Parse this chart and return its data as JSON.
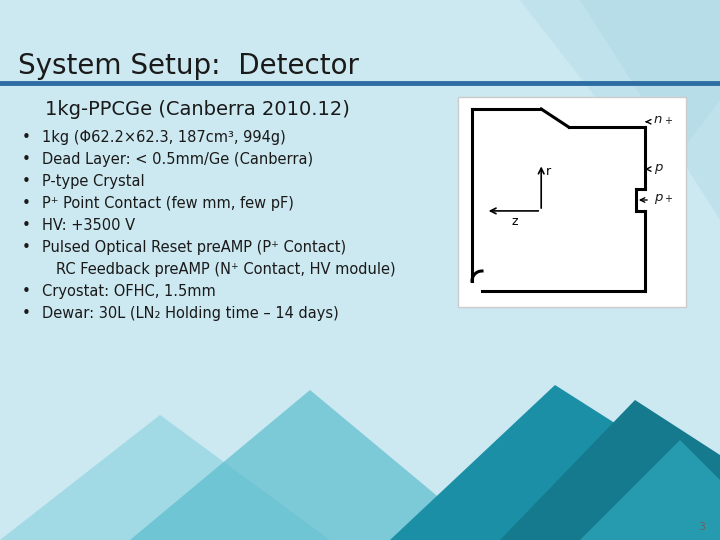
{
  "title": "System Setup:  Detector",
  "subtitle": "1kg-PPCGe (Canberra 2010.12)",
  "bg_color": "#cce8f0",
  "title_color": "#1a1a1a",
  "title_line_color": "#2e6da4",
  "bullet_items": [
    "1kg (Φ62.2×62.3, 187cm³, 994g)",
    "Dead Layer: < 0.5mm/Ge (Canberra)",
    "P-type Crystal",
    "P⁺ Point Contact (few mm, few pF)",
    "HV: +3500 V",
    "Pulsed Optical Reset preAMP (P⁺ Contact)",
    "RC Feedback preAMP (N⁺ Contact, HV module)",
    "Cryostat: OFHC, 1.5mm",
    "Dewar: 30L (LN₂ Holding time – 14 days)"
  ],
  "bullet_flags": [
    true,
    true,
    true,
    true,
    true,
    true,
    false,
    true,
    true
  ],
  "page_number": "3"
}
